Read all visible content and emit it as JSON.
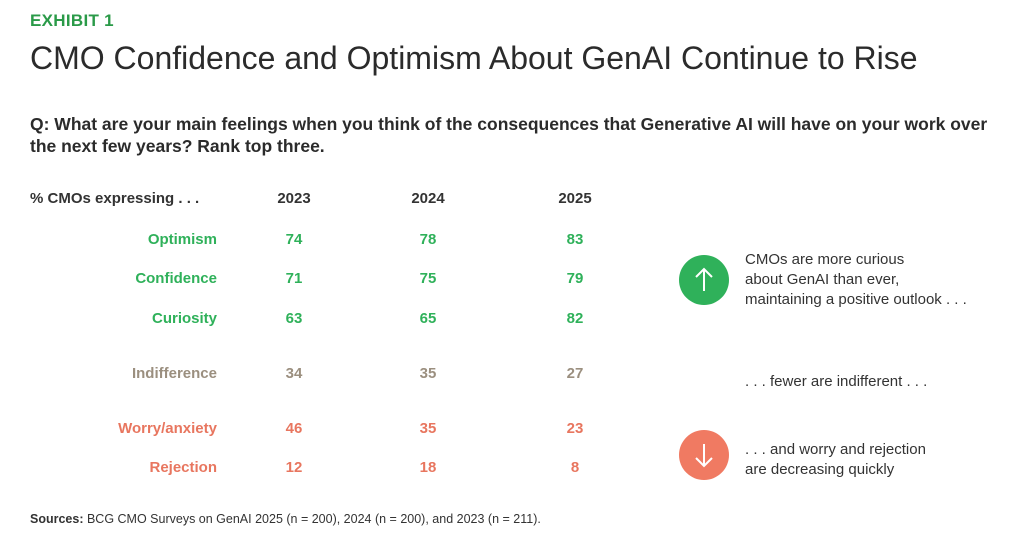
{
  "header": {
    "exhibit": "EXHIBIT 1",
    "title": "CMO Confidence and Optimism About GenAI Continue to Rise",
    "question": "Q: What are your main feelings when you think of the consequences that Generative AI will have on your work over the next few years? Rank top three."
  },
  "chart_data": {
    "type": "table",
    "row_header": "% CMOs expressing . . .",
    "columns": [
      "2023",
      "2024",
      "2025"
    ],
    "rows": [
      {
        "label": "Optimism",
        "values": [
          74,
          78,
          83
        ],
        "group": "positive"
      },
      {
        "label": "Confidence",
        "values": [
          71,
          75,
          79
        ],
        "group": "positive"
      },
      {
        "label": "Curiosity",
        "values": [
          63,
          65,
          82
        ],
        "group": "positive"
      },
      {
        "label": "Indifference",
        "values": [
          34,
          35,
          27
        ],
        "group": "neutral"
      },
      {
        "label": "Worry/anxiety",
        "values": [
          46,
          35,
          23
        ],
        "group": "negative"
      },
      {
        "label": "Rejection",
        "values": [
          12,
          18,
          8
        ],
        "group": "negative"
      }
    ],
    "colors": {
      "positive": "#2fb15a",
      "neutral": "#9b8f7f",
      "negative": "#e8765f"
    }
  },
  "annotations": {
    "positive": {
      "lines": [
        "CMOs are more curious",
        "about GenAI than ever,",
        "maintaining a positive outlook . . ."
      ],
      "icon": "arrow-up-icon",
      "color": "#2fb15a"
    },
    "neutral": {
      "lines": [
        ". . . fewer are indifferent . . ."
      ]
    },
    "negative": {
      "lines": [
        ". . . and worry and rejection",
        "are decreasing quickly"
      ],
      "icon": "arrow-down-icon",
      "color": "#f07a62"
    }
  },
  "footer": {
    "source_label": "Sources:",
    "source_text": " BCG CMO Surveys on GenAI 2025 (n = 200), 2024 (n = 200), and 2023 (n = 211)."
  }
}
